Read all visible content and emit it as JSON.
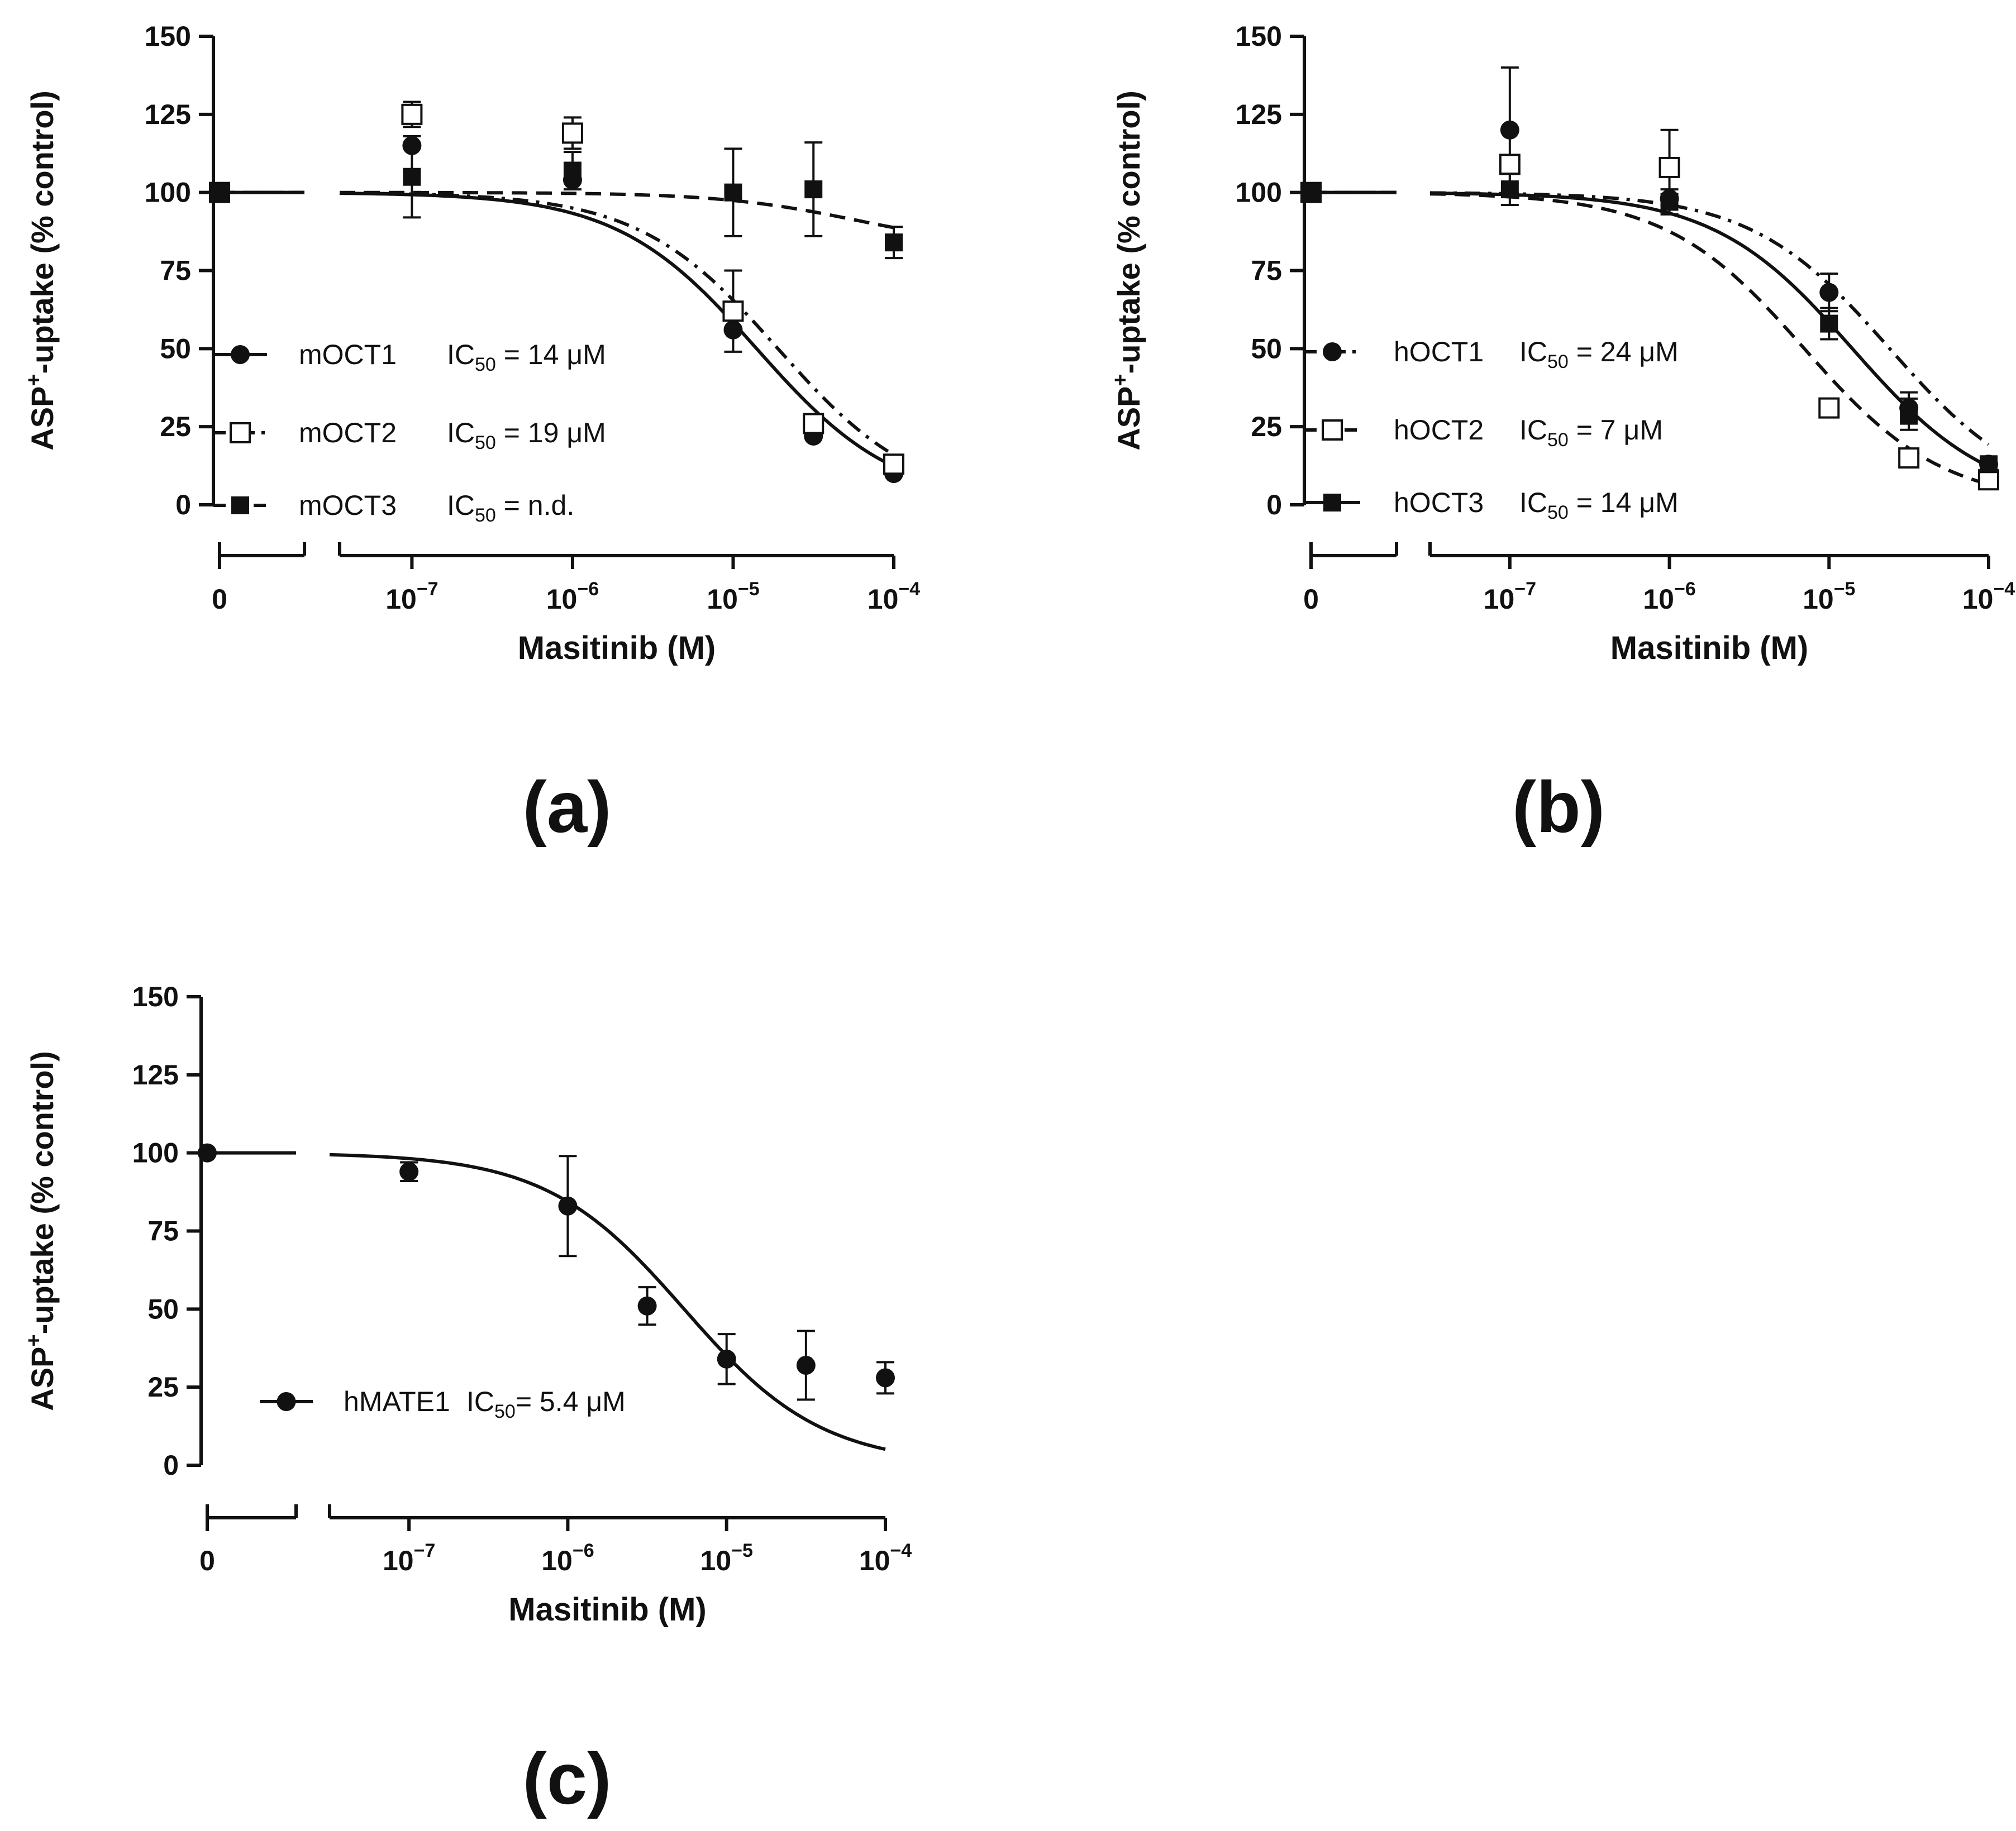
{
  "chart_data": [
    {
      "type": "scatter",
      "panel_label": "(a)",
      "xlabel": "Masitinib (M)",
      "ylabel_pre": "ASP",
      "ylabel_sup": "+",
      "ylabel_post": "-uptake (% control)",
      "ylim": [
        0,
        150
      ],
      "yticks": [
        "0",
        "25",
        "50",
        "75",
        "100",
        "125",
        "150"
      ],
      "control_tick": "0",
      "xticks": [
        {
          "base": "10",
          "exp": "−7",
          "log": -7
        },
        {
          "base": "10",
          "exp": "−6",
          "log": -6
        },
        {
          "base": "10",
          "exp": "−5",
          "log": -5
        },
        {
          "base": "10",
          "exp": "−4",
          "log": -4
        }
      ],
      "xlim_log": [
        -7.45,
        -4
      ],
      "series": [
        {
          "name": "mOCT1",
          "ic50_label": "IC",
          "ic50_sub": "50",
          "ic50_value": " = 14 μM",
          "ic50_uM": 14,
          "marker": "circle-filled",
          "line": "solid",
          "control": 100,
          "points": [
            {
              "log": -7,
              "y": 115,
              "err": 0
            },
            {
              "log": -6,
              "y": 104,
              "err": 0
            },
            {
              "log": -5,
              "y": 56,
              "err": 0
            },
            {
              "log": -4.5,
              "y": 22,
              "err": 0
            },
            {
              "log": -4,
              "y": 10,
              "err": 0
            }
          ]
        },
        {
          "name": "mOCT2",
          "ic50_label": "IC",
          "ic50_sub": "50",
          "ic50_value": " = 19 μM",
          "ic50_uM": 19,
          "marker": "square-open",
          "line": "dash-dot",
          "control": 100,
          "points": [
            {
              "log": -7,
              "y": 125,
              "err": 4
            },
            {
              "log": -6,
              "y": 119,
              "err": 5
            },
            {
              "log": -5,
              "y": 62,
              "err": 13
            },
            {
              "log": -4.5,
              "y": 26,
              "err": 0
            },
            {
              "log": -4,
              "y": 13,
              "err": 0
            }
          ]
        },
        {
          "name": "mOCT3",
          "ic50_label": "IC",
          "ic50_sub": "50",
          "ic50_value": " = n.d.",
          "ic50_uM": null,
          "marker": "square-filled",
          "line": "dashed",
          "control": 100,
          "points": [
            {
              "log": -7,
              "y": 105,
              "err": 13
            },
            {
              "log": -6,
              "y": 107,
              "err": 6
            },
            {
              "log": -5,
              "y": 100,
              "err": 14
            },
            {
              "log": -4.5,
              "y": 101,
              "err": 15
            },
            {
              "log": -4,
              "y": 84,
              "err": 5
            }
          ]
        }
      ]
    },
    {
      "type": "scatter",
      "panel_label": "(b)",
      "xlabel": "Masitinib (M)",
      "ylabel_pre": "ASP",
      "ylabel_sup": "+",
      "ylabel_post": "-uptake (% control)",
      "ylim": [
        0,
        150
      ],
      "yticks": [
        "0",
        "25",
        "50",
        "75",
        "100",
        "125",
        "150"
      ],
      "control_tick": "0",
      "xticks": [
        {
          "base": "10",
          "exp": "−7",
          "log": -7
        },
        {
          "base": "10",
          "exp": "−6",
          "log": -6
        },
        {
          "base": "10",
          "exp": "−5",
          "log": -5
        },
        {
          "base": "10",
          "exp": "−4",
          "log": -4
        }
      ],
      "xlim_log": [
        -7.5,
        -4
      ],
      "series": [
        {
          "name": "hOCT1",
          "ic50_label": "IC",
          "ic50_sub": "50",
          "ic50_value": " = 24 μM",
          "ic50_uM": 24,
          "marker": "circle-filled",
          "line": "dash-dot",
          "control": 100,
          "points": [
            {
              "log": -7,
              "y": 120,
              "err": 20
            },
            {
              "log": -6,
              "y": 98,
              "err": 0
            },
            {
              "log": -5,
              "y": 68,
              "err": 6
            },
            {
              "log": -4.5,
              "y": 31,
              "err": 5
            },
            {
              "log": -4,
              "y": 13,
              "err": 0
            }
          ]
        },
        {
          "name": "hOCT2",
          "ic50_label": "IC",
          "ic50_sub": "50",
          "ic50_value": " = 7 μM",
          "ic50_uM": 7,
          "marker": "square-open",
          "line": "dashed",
          "control": 100,
          "points": [
            {
              "log": -7,
              "y": 109,
              "err": 0
            },
            {
              "log": -6,
              "y": 108,
              "err": 12
            },
            {
              "log": -5,
              "y": 31,
              "err": 0
            },
            {
              "log": -4.5,
              "y": 15,
              "err": 0
            },
            {
              "log": -4,
              "y": 8,
              "err": 0
            }
          ]
        },
        {
          "name": "hOCT3",
          "ic50_label": "IC",
          "ic50_sub": "50",
          "ic50_value": " = 14 μM",
          "ic50_uM": 14,
          "marker": "square-filled",
          "line": "solid",
          "control": 100,
          "points": [
            {
              "log": -7,
              "y": 101,
              "err": 5
            },
            {
              "log": -6,
              "y": 97,
              "err": 4
            },
            {
              "log": -5,
              "y": 58,
              "err": 5
            },
            {
              "log": -4.5,
              "y": 29,
              "err": 5
            },
            {
              "log": -4,
              "y": 13,
              "err": 0
            }
          ]
        }
      ]
    },
    {
      "type": "scatter",
      "panel_label": "(c)",
      "xlabel": "Masitinib (M)",
      "ylabel_pre": "ASP",
      "ylabel_sup": "+",
      "ylabel_post": "-uptake (% control)",
      "ylim": [
        0,
        150
      ],
      "yticks": [
        "0",
        "25",
        "50",
        "75",
        "100",
        "125",
        "150"
      ],
      "control_tick": "0",
      "xticks": [
        {
          "base": "10",
          "exp": "−7",
          "log": -7
        },
        {
          "base": "10",
          "exp": "−6",
          "log": -6
        },
        {
          "base": "10",
          "exp": "−5",
          "log": -5
        },
        {
          "base": "10",
          "exp": "−4",
          "log": -4
        }
      ],
      "xlim_log": [
        -7.5,
        -4
      ],
      "series": [
        {
          "name": "hMATE1",
          "ic50_label": "IC",
          "ic50_sub": "50",
          "ic50_value": "= 5.4 μM",
          "ic50_uM": 5.4,
          "marker": "circle-filled",
          "line": "solid",
          "control": 100,
          "points": [
            {
              "log": -7,
              "y": 94,
              "err": 3
            },
            {
              "log": -6,
              "y": 83,
              "err": 16
            },
            {
              "log": -5.5,
              "y": 51,
              "err": 6
            },
            {
              "log": -5,
              "y": 34,
              "err": 8
            },
            {
              "log": -4.5,
              "y": 32,
              "err": 11
            },
            {
              "log": -4,
              "y": 28,
              "err": 5
            }
          ]
        }
      ]
    }
  ]
}
